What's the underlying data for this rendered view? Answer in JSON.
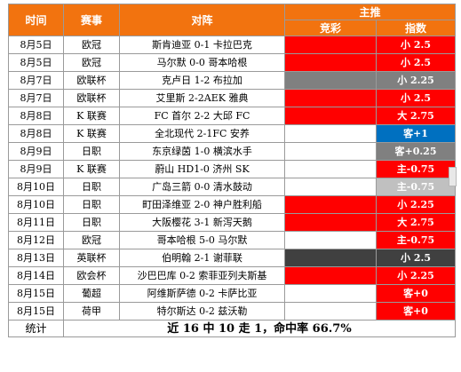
{
  "header": {
    "time": "时间",
    "event": "赛事",
    "match": "对阵",
    "main_pick": "主推",
    "jingcai": "竞彩",
    "index": "指数"
  },
  "rows": [
    {
      "time": "8月5日",
      "event": "欧冠",
      "match": "斯肯迪亚 0-1 卡拉巴克",
      "jc_color": "#ff0000",
      "pick": "小 2.5",
      "pick_color": "#ff0000"
    },
    {
      "time": "8月5日",
      "event": "欧冠",
      "match": "马尔默 0-0 哥本哈根",
      "jc_color": "#ff0000",
      "pick": "小 2.5",
      "pick_color": "#ff0000"
    },
    {
      "time": "8月7日",
      "event": "欧联杯",
      "match": "克卢日 1-2 布拉加",
      "jc_color": "#808080",
      "pick": "小 2.25",
      "pick_color": "#808080"
    },
    {
      "time": "8月7日",
      "event": "欧联杯",
      "match": "艾里斯 2-2AEK 雅典",
      "jc_color": "#ff0000",
      "pick": "小 2.5",
      "pick_color": "#ff0000"
    },
    {
      "time": "8月8日",
      "event": "K 联赛",
      "match": "FC 首尔 2-2 大邱 FC",
      "jc_color": "#ff0000",
      "pick": "大 2.75",
      "pick_color": "#ff0000"
    },
    {
      "time": "8月8日",
      "event": "K 联赛",
      "match": "全北现代 2-1FC 安养",
      "jc_color": "#ffffff",
      "pick": "客+1",
      "pick_color": "#0070c0"
    },
    {
      "time": "8月9日",
      "event": "日职",
      "match": "东京绿茵 1-0 横滨水手",
      "jc_color": "#ffffff",
      "pick": "客+0.25",
      "pick_color": "#808080"
    },
    {
      "time": "8月9日",
      "event": "K 联赛",
      "match": "蔚山 HD1-0 济州 SK",
      "jc_color": "#ffffff",
      "pick": "主-0.75",
      "pick_color": "#ff0000"
    },
    {
      "time": "8月10日",
      "event": "日职",
      "match": "广岛三箭 0-0 清水鼓动",
      "jc_color": "#ffffff",
      "pick": "主-0.75",
      "pick_color": "#c0c0c0"
    },
    {
      "time": "8月10日",
      "event": "日职",
      "match": "町田泽维亚 2-0 神户胜利船",
      "jc_color": "#ff0000",
      "pick": "小 2.25",
      "pick_color": "#ff0000"
    },
    {
      "time": "8月11日",
      "event": "日职",
      "match": "大阪樱花 3-1 新泻天鹅",
      "jc_color": "#ff0000",
      "pick": "大 2.75",
      "pick_color": "#ff0000"
    },
    {
      "time": "8月12日",
      "event": "欧冠",
      "match": "哥本哈根 5-0 马尔默",
      "jc_color": "#ffffff",
      "pick": "主-0.75",
      "pick_color": "#ff0000"
    },
    {
      "time": "8月13日",
      "event": "英联杯",
      "match": "伯明翰 2-1 谢菲联",
      "jc_color": "#404040",
      "pick": "小 2.5",
      "pick_color": "#404040"
    },
    {
      "time": "8月14日",
      "event": "欧会杯",
      "match": "沙巴巴库 0-2 索菲亚列夫斯基",
      "jc_color": "#ff0000",
      "pick": "小 2.25",
      "pick_color": "#ff0000"
    },
    {
      "time": "8月15日",
      "event": "葡超",
      "match": "阿维斯萨德 0-2 卡萨比亚",
      "jc_color": "#ffffff",
      "pick": "客+0",
      "pick_color": "#ff0000"
    },
    {
      "time": "8月15日",
      "event": "荷甲",
      "match": "特尔斯达 0-2 兹沃勒",
      "jc_color": "#ffffff",
      "pick": "客+0",
      "pick_color": "#ff0000"
    }
  ],
  "footer": {
    "label": "统计",
    "summary": "近 16 中 10 走 1，命中率 66.7%"
  }
}
